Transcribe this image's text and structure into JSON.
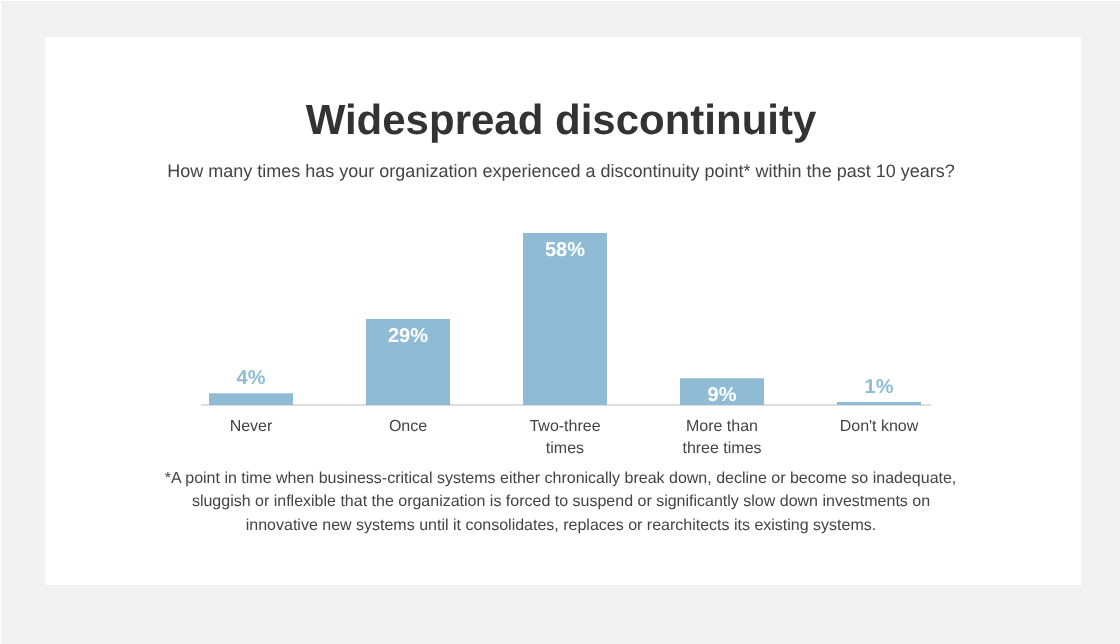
{
  "chart_data": {
    "type": "bar",
    "title": "Widespread discontinuity",
    "subtitle": "How many times has your organization experienced a discontinuity point* within the past 10 years?",
    "categories": [
      "Never",
      "Once",
      "Two-three times",
      "More than three times",
      "Don't know"
    ],
    "values": [
      4,
      29,
      58,
      9,
      1
    ],
    "value_labels": [
      "4%",
      "29%",
      "58%",
      "9%",
      "1%"
    ],
    "color": "#8fbcd4",
    "annotations": [
      "*A point in time when business-critical systems either chronically break down, decline or become so inadequate, sluggish or inflexible that the organization is forced to suspend or significantly slow down investments on innovative new systems until it consolidates, replaces or rearchitects its existing systems."
    ]
  }
}
